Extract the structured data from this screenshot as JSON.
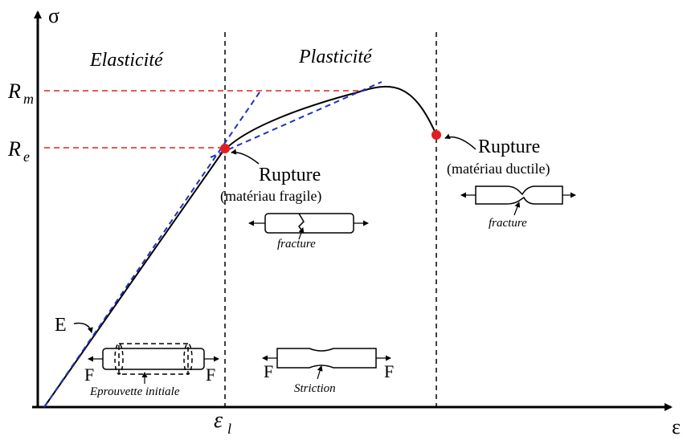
{
  "axes": {
    "y_label": "σ",
    "x_label": "ε"
  },
  "regions": [
    "Elasticité",
    "Plasticité"
  ],
  "levels": [
    {
      "symbol": "R",
      "subscript": "m"
    },
    {
      "symbol": "R",
      "subscript": "e"
    }
  ],
  "strain_limit": {
    "symbol": "ε",
    "subscript": "l"
  },
  "modulus_label": "E",
  "brittle_rupture": {
    "title": "Rupture",
    "note": "(matériau fragile)",
    "specimen_label": "fracture"
  },
  "ductile_rupture": {
    "title": "Rupture",
    "note": "(matériau ductile)",
    "specimen_label": "fracture"
  },
  "initial_specimen": {
    "force_left": "F",
    "force_right": "F",
    "label": "Eprouvette initiale"
  },
  "necking_specimen": {
    "force_left": "F",
    "force_right": "F",
    "label": "Striction"
  }
}
